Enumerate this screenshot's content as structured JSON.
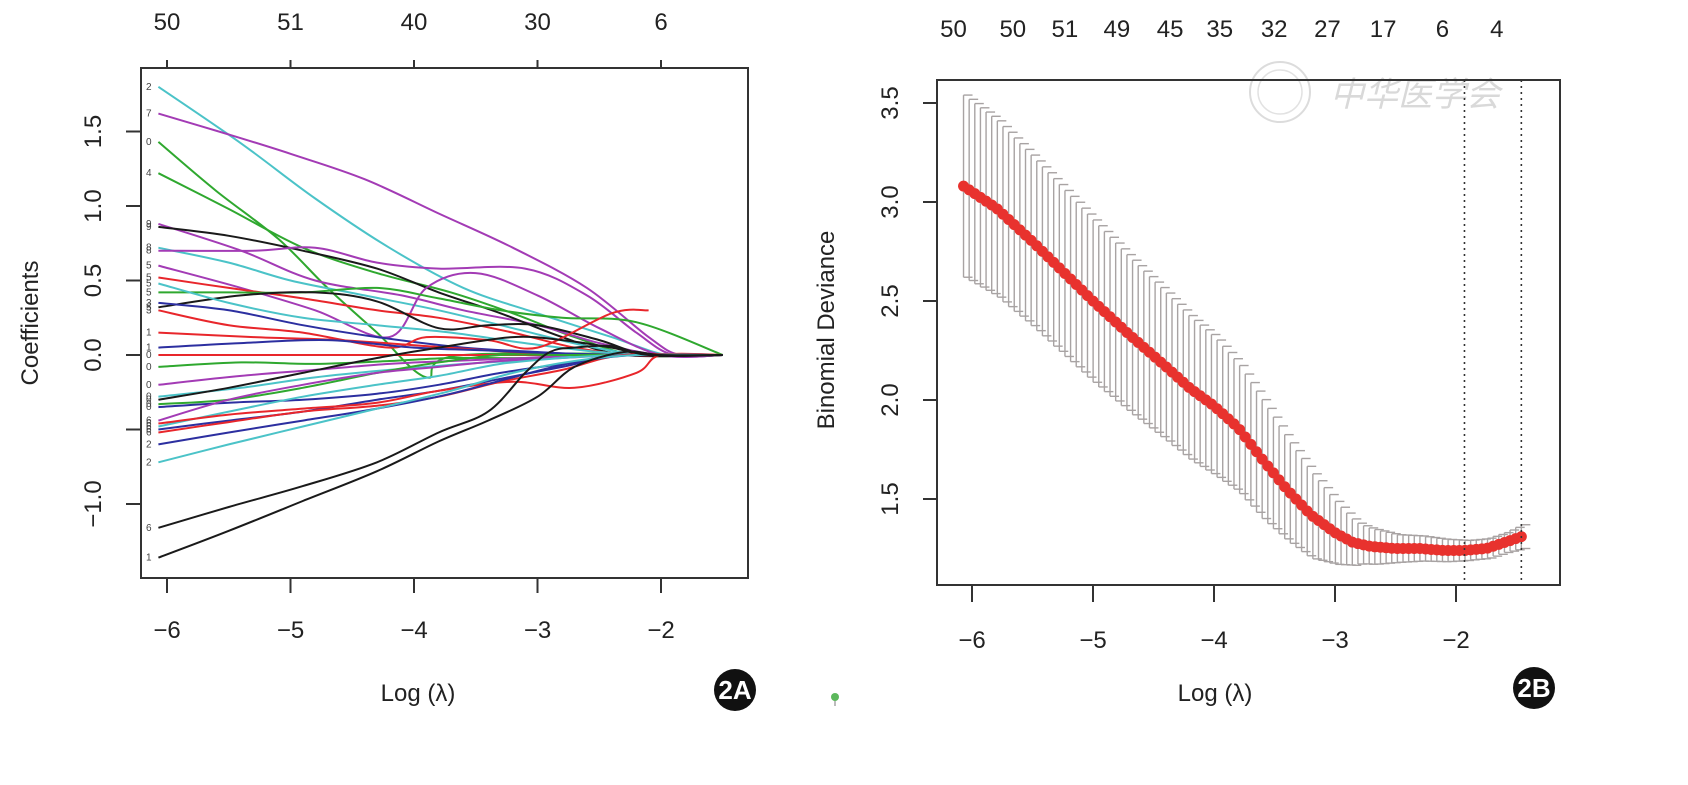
{
  "figure": {
    "watermark_text": "中华医学会",
    "stray_dot_color": "#5cb85c"
  },
  "chart_data": [
    {
      "id": "2A",
      "type": "line",
      "badge": "2A",
      "title": "",
      "xlabel": "Log (λ)",
      "ylabel": "Coefficients",
      "xlim": [
        -6.2,
        -1.1
      ],
      "ylim": [
        -1.4,
        1.95
      ],
      "x_ticks": [
        -6,
        -5,
        -4,
        -3,
        -2
      ],
      "x_tick_labels": [
        "−6",
        "−5",
        "−4",
        "−3",
        "−2"
      ],
      "y_ticks": [
        -1.0,
        -0.5,
        0.0,
        0.5,
        1.0,
        1.5
      ],
      "y_tick_labels": [
        "−1.0",
        "",
        "0.0",
        "0.5",
        "1.0",
        "1.5"
      ],
      "top_axis": {
        "positions": [
          -6,
          -5,
          -4,
          -3,
          -2
        ],
        "labels": [
          "50",
          "51",
          "40",
          "30",
          "6"
        ]
      },
      "grid": false,
      "legend": "none",
      "colors": [
        "#4bc3c8",
        "#a33bb5",
        "#2fa82f",
        "#e8262b",
        "#1a1a1a",
        "#2c2fa0"
      ],
      "series": [
        {
          "name": "2",
          "color": "#4bc3c8",
          "x": [
            -6.07,
            -5.4,
            -4.8,
            -4.2,
            -3.6,
            -3.0,
            -2.4,
            -1.95
          ],
          "y": [
            1.8,
            1.42,
            1.05,
            0.72,
            0.45,
            0.28,
            0.12,
            0.0
          ]
        },
        {
          "name": "7",
          "color": "#a33bb5",
          "x": [
            -6.07,
            -5.5,
            -5.0,
            -4.4,
            -3.8,
            -3.2,
            -2.6,
            -2.1,
            -1.85
          ],
          "y": [
            1.62,
            1.48,
            1.35,
            1.18,
            0.95,
            0.72,
            0.45,
            0.12,
            0.0
          ]
        },
        {
          "name": "0",
          "color": "#2fa82f",
          "x": [
            -6.07,
            -5.6,
            -5.1,
            -4.7,
            -4.3,
            -3.9,
            -3.6
          ],
          "y": [
            1.43,
            1.1,
            0.78,
            0.45,
            0.15,
            -0.15,
            0.0
          ]
        },
        {
          "name": "4",
          "color": "#2fa82f",
          "x": [
            -6.07,
            -5.5,
            -4.9,
            -4.3,
            -3.7,
            -3.2,
            -2.7,
            -2.2
          ],
          "y": [
            1.22,
            0.98,
            0.72,
            0.55,
            0.42,
            0.28,
            0.12,
            0.0
          ]
        },
        {
          "name": "9a",
          "color": "#a33bb5",
          "x": [
            -6.07,
            -5.4,
            -4.8,
            -4.1,
            -3.6,
            -3.0,
            -2.5,
            -2.0
          ],
          "y": [
            0.88,
            0.7,
            0.5,
            0.4,
            0.3,
            0.2,
            0.08,
            0.0
          ]
        },
        {
          "name": "9b",
          "color": "#1a1a1a",
          "x": [
            -6.07,
            -5.5,
            -4.9,
            -4.3,
            -3.8,
            -3.3,
            -2.8,
            -2.3
          ],
          "y": [
            0.86,
            0.8,
            0.7,
            0.58,
            0.42,
            0.28,
            0.12,
            0.0
          ]
        },
        {
          "name": "8a",
          "color": "#4bc3c8",
          "x": [
            -6.07,
            -5.5,
            -5.0,
            -4.4,
            -3.8,
            -3.2,
            -2.6,
            -2.1
          ],
          "y": [
            0.72,
            0.62,
            0.5,
            0.4,
            0.3,
            0.18,
            0.06,
            0.0
          ]
        },
        {
          "name": "8b",
          "color": "#a33bb5",
          "x": [
            -6.07,
            -5.3,
            -4.8,
            -4.3,
            -3.8,
            -3.1,
            -2.6,
            -2.2,
            -1.9
          ],
          "y": [
            0.7,
            0.7,
            0.72,
            0.62,
            0.58,
            0.58,
            0.4,
            0.15,
            0.0
          ]
        },
        {
          "name": "5a",
          "color": "#a33bb5",
          "x": [
            -6.07,
            -5.4,
            -4.8,
            -4.2,
            -3.9,
            -3.5,
            -3.0,
            -2.5,
            -2.0
          ],
          "y": [
            0.6,
            0.45,
            0.3,
            0.12,
            0.45,
            0.55,
            0.4,
            0.18,
            0.0
          ]
        },
        {
          "name": "5b",
          "color": "#e8262b",
          "x": [
            -6.07,
            -5.5,
            -4.9,
            -4.3,
            -3.8,
            -3.2,
            -2.7,
            -2.2
          ],
          "y": [
            0.52,
            0.45,
            0.38,
            0.3,
            0.25,
            0.15,
            0.05,
            0.0
          ]
        },
        {
          "name": "5c",
          "color": "#2fa82f",
          "x": [
            -6.07,
            -5.5,
            -4.9,
            -4.3,
            -3.8,
            -3.3,
            -2.8,
            -2.2,
            -1.5
          ],
          "y": [
            0.42,
            0.42,
            0.42,
            0.45,
            0.38,
            0.3,
            0.25,
            0.22,
            0.0
          ]
        },
        {
          "name": "5d",
          "color": "#1a1a1a",
          "x": [
            -6.07,
            -5.4,
            -4.8,
            -4.3,
            -3.8,
            -3.4,
            -3.0,
            -2.5,
            -2.1
          ],
          "y": [
            0.32,
            0.4,
            0.42,
            0.36,
            0.18,
            0.2,
            0.2,
            0.1,
            0.0
          ]
        },
        {
          "name": "5e",
          "color": "#4bc3c8",
          "x": [
            -6.07,
            -5.5,
            -4.9,
            -4.3,
            -3.7,
            -3.1,
            -2.5,
            -2.0
          ],
          "y": [
            0.48,
            0.35,
            0.25,
            0.2,
            0.15,
            0.08,
            0.02,
            0.0
          ]
        },
        {
          "name": "3a",
          "color": "#2c2fa0",
          "x": [
            -6.07,
            -5.5,
            -4.9,
            -4.3,
            -3.6,
            -3.0,
            -2.5,
            -2.0
          ],
          "y": [
            0.35,
            0.3,
            0.2,
            0.12,
            0.05,
            0.02,
            0.0,
            0.0
          ]
        },
        {
          "name": "3b",
          "color": "#e8262b",
          "x": [
            -6.07,
            -5.5,
            -4.9,
            -4.2,
            -3.9,
            -3.4,
            -3.0,
            -2.4,
            -2.1
          ],
          "y": [
            0.3,
            0.2,
            0.15,
            0.05,
            0.12,
            0.1,
            0.05,
            0.28,
            0.3
          ]
        },
        {
          "name": "1a",
          "color": "#e8262b",
          "x": [
            -6.07,
            -5.3,
            -4.6,
            -3.9,
            -3.2,
            -2.6,
            -2.0
          ],
          "y": [
            0.15,
            0.12,
            0.1,
            0.06,
            0.02,
            0.0,
            0.0
          ]
        },
        {
          "name": "1b",
          "color": "#2c2fa0",
          "x": [
            -6.07,
            -5.4,
            -4.7,
            -4.0,
            -3.4,
            -2.8,
            -2.2
          ],
          "y": [
            0.05,
            0.08,
            0.1,
            0.05,
            0.03,
            0.01,
            0.0
          ]
        },
        {
          "name": "0a",
          "color": "#e8262b",
          "x": [
            -6.07,
            -5.0,
            -4.0,
            -3.0,
            -2.0,
            -1.5
          ],
          "y": [
            0.0,
            0.0,
            0.0,
            0.0,
            0.0,
            0.0
          ]
        },
        {
          "name": "0b",
          "color": "#2fa82f",
          "x": [
            -6.07,
            -5.4,
            -4.8,
            -4.2,
            -3.7,
            -3.1,
            -2.5,
            -2.0
          ],
          "y": [
            -0.08,
            -0.05,
            -0.06,
            -0.04,
            -0.02,
            -0.02,
            0.0,
            0.0
          ]
        },
        {
          "name": "0c",
          "color": "#a33bb5",
          "x": [
            -6.07,
            -5.4,
            -4.8,
            -4.2,
            -3.7,
            -3.1,
            -2.6,
            -2.1
          ],
          "y": [
            -0.2,
            -0.14,
            -0.1,
            -0.06,
            -0.04,
            -0.02,
            0.0,
            0.0
          ]
        },
        {
          "name": "0d",
          "color": "#4bc3c8",
          "x": [
            -6.07,
            -5.4,
            -4.8,
            -4.2,
            -3.6,
            -3.0,
            -2.5,
            -2.0
          ],
          "y": [
            -0.28,
            -0.22,
            -0.15,
            -0.1,
            -0.06,
            -0.03,
            0.0,
            0.0
          ]
        },
        {
          "name": "0e",
          "color": "#1a1a1a",
          "x": [
            -6.07,
            -5.5,
            -4.9,
            -4.3,
            -3.8,
            -3.2,
            -2.8,
            -2.4,
            -2.1
          ],
          "y": [
            -0.3,
            -0.22,
            -0.12,
            -0.02,
            0.05,
            0.12,
            0.1,
            0.05,
            0.0
          ]
        },
        {
          "name": "0f",
          "color": "#2fa82f",
          "x": [
            -6.07,
            -5.5,
            -4.9,
            -4.3,
            -3.8,
            -3.3,
            -2.8,
            -2.3
          ],
          "y": [
            -0.33,
            -0.3,
            -0.22,
            -0.12,
            -0.05,
            0.0,
            0.0,
            0.0
          ]
        },
        {
          "name": "0g",
          "color": "#2c2fa0",
          "x": [
            -6.07,
            -5.5,
            -4.9,
            -4.3,
            -3.8,
            -3.3,
            -2.8,
            -2.3
          ],
          "y": [
            -0.35,
            -0.32,
            -0.3,
            -0.26,
            -0.2,
            -0.12,
            -0.06,
            0.0
          ]
        },
        {
          "name": "6a",
          "color": "#a33bb5",
          "x": [
            -6.07,
            -5.5,
            -4.9,
            -4.3,
            -3.8,
            -3.3,
            -2.8,
            -2.3
          ],
          "y": [
            -0.44,
            -0.3,
            -0.2,
            -0.12,
            -0.08,
            -0.04,
            -0.02,
            0.0
          ]
        },
        {
          "name": "6b",
          "color": "#4bc3c8",
          "x": [
            -6.07,
            -5.5,
            -4.9,
            -4.3,
            -3.8,
            -3.3,
            -2.8,
            -2.3
          ],
          "y": [
            -0.48,
            -0.38,
            -0.28,
            -0.2,
            -0.14,
            -0.06,
            -0.02,
            0.0
          ]
        },
        {
          "name": "6c",
          "color": "#2c2fa0",
          "x": [
            -6.07,
            -5.5,
            -4.9,
            -4.3,
            -3.8,
            -3.3,
            -2.8,
            -2.3
          ],
          "y": [
            -0.5,
            -0.44,
            -0.38,
            -0.3,
            -0.24,
            -0.16,
            -0.08,
            0.0
          ]
        },
        {
          "name": "6d",
          "color": "#e8262b",
          "x": [
            -6.07,
            -5.5,
            -4.9,
            -4.3,
            -3.8,
            -3.3,
            -2.8,
            -2.3
          ],
          "y": [
            -0.52,
            -0.45,
            -0.38,
            -0.34,
            -0.28,
            -0.18,
            -0.1,
            0.0
          ]
        },
        {
          "name": "6e",
          "color": "#e8262b",
          "x": [
            -6.07,
            -5.5,
            -4.9,
            -4.3,
            -3.8,
            -3.2,
            -2.7,
            -2.2,
            -2.0
          ],
          "y": [
            -0.46,
            -0.4,
            -0.36,
            -0.32,
            -0.24,
            -0.18,
            -0.22,
            -0.12,
            0.0
          ]
        },
        {
          "name": "2b",
          "color": "#2c2fa0",
          "x": [
            -6.07,
            -5.5,
            -4.9,
            -4.3,
            -3.7,
            -3.2,
            -2.7,
            -2.2
          ],
          "y": [
            -0.6,
            -0.52,
            -0.44,
            -0.36,
            -0.26,
            -0.15,
            -0.05,
            0.0
          ]
        },
        {
          "name": "2c",
          "color": "#4bc3c8",
          "x": [
            -6.07,
            -5.5,
            -4.9,
            -4.3,
            -3.7,
            -3.2,
            -2.7,
            -2.2
          ],
          "y": [
            -0.72,
            -0.6,
            -0.48,
            -0.36,
            -0.24,
            -0.12,
            -0.04,
            0.0
          ]
        },
        {
          "name": "6",
          "color": "#1a1a1a",
          "x": [
            -6.07,
            -5.5,
            -4.9,
            -4.3,
            -3.8,
            -3.4,
            -3.1,
            -2.9,
            -2.7,
            -2.4,
            -2.1
          ],
          "y": [
            -1.16,
            -1.02,
            -0.88,
            -0.72,
            -0.52,
            -0.38,
            -0.12,
            0.02,
            0.05,
            0.06,
            0.0
          ]
        },
        {
          "name": "1",
          "color": "#1a1a1a",
          "x": [
            -6.07,
            -5.5,
            -4.9,
            -4.3,
            -3.8,
            -3.4,
            -3.0,
            -2.7,
            -2.3,
            -2.0
          ],
          "y": [
            -1.36,
            -1.18,
            -0.98,
            -0.78,
            -0.58,
            -0.44,
            -0.28,
            -0.08,
            0.02,
            0.0
          ]
        }
      ],
      "left_series_labels": [
        "2",
        "7",
        "0",
        "4",
        "9",
        "9",
        "8",
        "8",
        "5",
        "5",
        "5",
        "5",
        "5",
        "3",
        "3",
        "1",
        "1",
        "0",
        "0",
        "0",
        "0",
        "0",
        "0",
        "0",
        "6",
        "6",
        "6",
        "6",
        "6",
        "2",
        "2",
        "6",
        "1"
      ]
    },
    {
      "id": "2B",
      "type": "line",
      "badge": "2B",
      "title": "",
      "xlabel": "Log (λ)",
      "ylabel": "Binomial Deviance",
      "xlim": [
        -6.35,
        -1.2
      ],
      "ylim": [
        1.07,
        3.63
      ],
      "x_ticks": [
        -6,
        -5,
        -4,
        -3,
        -2
      ],
      "x_tick_labels": [
        "−6",
        "−5",
        "−4",
        "−3",
        "−2"
      ],
      "y_ticks": [
        1.5,
        2.0,
        2.5,
        3.0,
        3.5
      ],
      "y_tick_labels": [
        "1.5",
        "2.0",
        "2.5",
        "3.0",
        "3.5"
      ],
      "top_axis": {
        "positions": [
          -6.07,
          -5.58,
          -5.15,
          -4.72,
          -4.28,
          -3.87,
          -3.42,
          -2.98,
          -2.52,
          -2.03,
          -1.58
        ],
        "labels": [
          "50",
          "50",
          "51",
          "49",
          "45",
          "35",
          "32",
          "27",
          "17",
          "6",
          "4"
        ]
      },
      "grid": false,
      "legend": "none",
      "vlines": [
        {
          "name": "lambda-min",
          "x": -1.93,
          "style": "dotted"
        },
        {
          "name": "lambda-1se",
          "x": -1.46,
          "style": "dotted"
        }
      ],
      "point_color": "#e8322e",
      "errorbar_color": "#a8a3a3",
      "mean_curve": {
        "x": [
          -6.07,
          -5.8,
          -5.5,
          -5.2,
          -5.0,
          -4.7,
          -4.4,
          -4.2,
          -4.0,
          -3.8,
          -3.6,
          -3.4,
          -3.2,
          -3.0,
          -2.85,
          -2.7,
          -2.5,
          -2.3,
          -2.1,
          -1.93,
          -1.75,
          -1.6,
          -1.46
        ],
        "y": [
          3.08,
          2.97,
          2.8,
          2.62,
          2.5,
          2.33,
          2.17,
          2.06,
          1.97,
          1.86,
          1.7,
          1.55,
          1.42,
          1.33,
          1.28,
          1.26,
          1.25,
          1.25,
          1.24,
          1.24,
          1.25,
          1.28,
          1.31
        ]
      },
      "error_half_width": {
        "x": [
          -6.07,
          -5.5,
          -5.0,
          -4.5,
          -4.0,
          -3.6,
          -3.2,
          -3.0,
          -2.8,
          -2.5,
          -2.2,
          -1.9,
          -1.6,
          -1.46
        ],
        "y": [
          0.46,
          0.43,
          0.41,
          0.38,
          0.35,
          0.3,
          0.22,
          0.16,
          0.1,
          0.07,
          0.06,
          0.05,
          0.05,
          0.06
        ]
      }
    }
  ]
}
